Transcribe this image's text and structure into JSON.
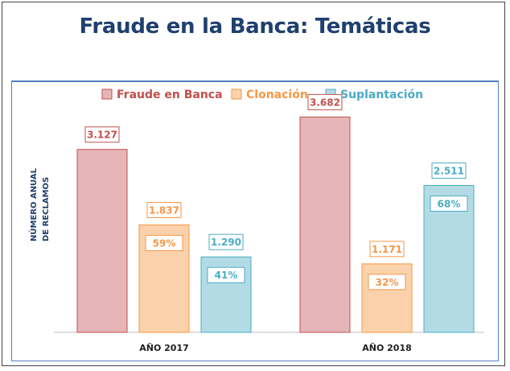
{
  "title": "Fraude en la Banca: Temáticas",
  "chart_data": {
    "type": "bar",
    "title": "Fraude en la Banca: Temáticas",
    "ylabel": [
      "NÚMERO ANUAL",
      "DE RECLAMOS"
    ],
    "xlabel": "",
    "categories": [
      "AÑO 2017",
      "AÑO 2018"
    ],
    "series": [
      {
        "name": "Fraude en Banca",
        "values": [
          3127,
          3682
        ],
        "labels": [
          "3.127",
          "3.682"
        ],
        "percent_labels": [
          "",
          ""
        ]
      },
      {
        "name": "Clonación",
        "values": [
          1837,
          1171
        ],
        "labels": [
          "1.837",
          "1.171"
        ],
        "percent_labels": [
          "59%",
          "32%"
        ]
      },
      {
        "name": "Suplantación",
        "values": [
          1290,
          2511
        ],
        "labels": [
          "1.290",
          "2.511"
        ],
        "percent_labels": [
          "41%",
          "68%"
        ]
      }
    ],
    "ylim": [
      0,
      4100
    ],
    "grid": false,
    "legend_position": "top",
    "colors": {
      "fill": [
        "#e6b5b8",
        "#fbd2ab",
        "#b3dbe5"
      ],
      "stroke": [
        "#c0504d",
        "#f79646",
        "#4bacc6"
      ],
      "text": [
        "#c0504d",
        "#f79646",
        "#4bacc6"
      ]
    }
  }
}
